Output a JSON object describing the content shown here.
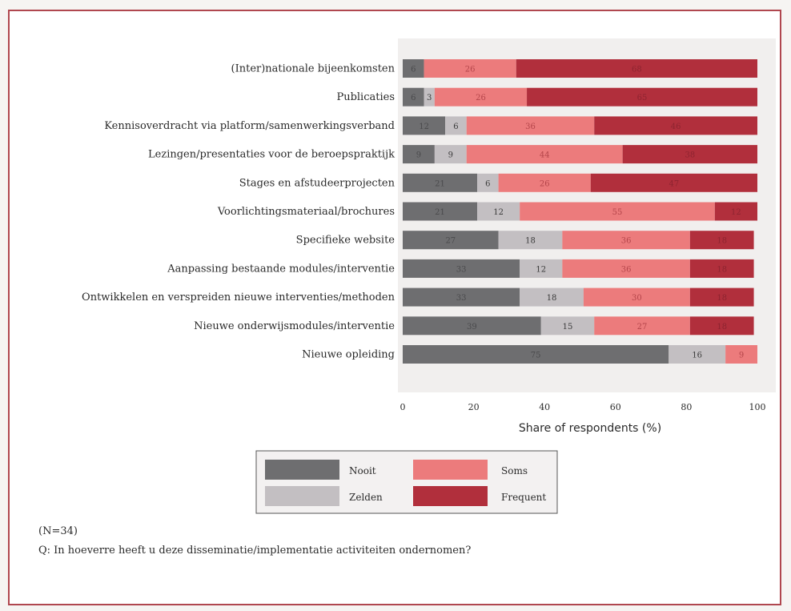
{
  "chart_data": {
    "type": "bar",
    "orientation": "horizontal",
    "stacked": true,
    "categories": [
      "(Inter)nationale bijeenkomsten",
      "Publicaties",
      "Kennisoverdracht via platform/samenwerkingsverband",
      "Lezingen/presentaties voor de beroepspraktijk",
      "Stages en afstudeerprojecten",
      "Voorlichtingsmateriaal/brochures",
      "Specifieke website",
      "Aanpassing bestaande modules/interventie",
      "Ontwikkelen en verspreiden nieuwe interventies/methoden",
      "Nieuwe onderwijsmodules/interventie",
      "Nieuwe opleiding"
    ],
    "series": [
      {
        "name": "Nooit",
        "color": "#6e6e70",
        "label_color": "#4a4a4c",
        "values": [
          6,
          6,
          12,
          9,
          21,
          21,
          27,
          33,
          33,
          39,
          75
        ]
      },
      {
        "name": "Zelden",
        "color": "#c3bfc2",
        "label_color": "#3a3a3a",
        "values": [
          0,
          3,
          6,
          9,
          6,
          12,
          18,
          12,
          18,
          15,
          16
        ]
      },
      {
        "name": "Soms",
        "color": "#ec7b7c",
        "label_color": "#b4454a",
        "values": [
          26,
          26,
          36,
          44,
          26,
          55,
          36,
          36,
          30,
          27,
          9
        ]
      },
      {
        "name": "Frequent",
        "color": "#b12f3c",
        "label_color": "#8e2430",
        "values": [
          68,
          65,
          46,
          38,
          47,
          12,
          18,
          18,
          18,
          18,
          0
        ]
      }
    ],
    "segment_labels": [
      [
        "6",
        "",
        "26",
        "68"
      ],
      [
        "6",
        "3",
        "26",
        "65"
      ],
      [
        "12",
        "6",
        "36",
        "46"
      ],
      [
        "9",
        "9",
        "44",
        "38"
      ],
      [
        "21",
        "6",
        "26",
        "47"
      ],
      [
        "21",
        "12",
        "55",
        "12"
      ],
      [
        "27",
        "18",
        "36",
        "18"
      ],
      [
        "33",
        "12",
        "36",
        "18"
      ],
      [
        "33",
        "18",
        "30",
        "18"
      ],
      [
        "39",
        "15",
        "27",
        "18"
      ],
      [
        "75",
        "16",
        "9",
        ""
      ]
    ],
    "xlabel": "Share of respondents (%)",
    "ylabel": "",
    "xlim": [
      0,
      100
    ],
    "xticks": [
      "0",
      "20",
      "40",
      "60",
      "80",
      "100"
    ],
    "grid": false,
    "legend_position": "bottom-center"
  },
  "notes": {
    "n": "(N=34)",
    "question": "Q: In hoeverre heeft u deze disseminatie/implementatie activiteiten ondernomen?"
  }
}
